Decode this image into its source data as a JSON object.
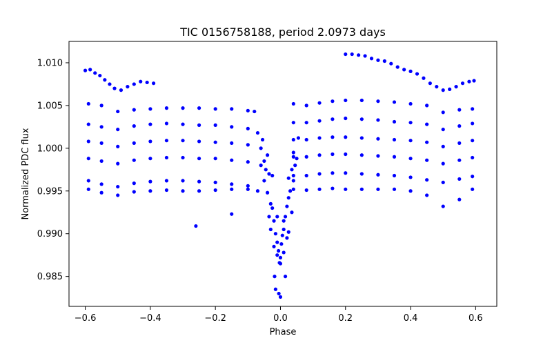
{
  "chart_data": {
    "type": "scatter",
    "title": "TIC 0156758188, period 2.0973 days",
    "xlabel": "Phase",
    "ylabel": "Normalized PDC flux",
    "xlim": [
      -0.65,
      0.665
    ],
    "ylim": [
      0.9815,
      1.0125
    ],
    "xticks": [
      -0.6,
      -0.4,
      -0.2,
      0.0,
      0.2,
      0.4,
      0.6
    ],
    "xtick_labels": [
      "−0.6",
      "−0.4",
      "−0.2",
      "0.0",
      "0.2",
      "0.4",
      "0.6"
    ],
    "yticks": [
      0.985,
      0.99,
      0.995,
      1.0,
      1.005,
      1.01
    ],
    "ytick_labels": [
      "0.985",
      "0.990",
      "0.995",
      "1.000",
      "1.005",
      "1.010"
    ],
    "grid": false,
    "marker_color": "#0000ff",
    "series": [
      {
        "points": [
          [
            -0.6,
            1.0091
          ],
          [
            -0.585,
            1.0092
          ],
          [
            -0.57,
            1.0088
          ],
          [
            -0.555,
            1.0085
          ],
          [
            -0.54,
            1.008
          ],
          [
            -0.525,
            1.0075
          ],
          [
            -0.51,
            1.007
          ],
          [
            -0.49,
            1.0068
          ],
          [
            -0.47,
            1.0072
          ],
          [
            -0.45,
            1.0075
          ],
          [
            -0.43,
            1.0078
          ],
          [
            -0.41,
            1.0077
          ],
          [
            -0.39,
            1.0076
          ],
          [
            0.2,
            1.011
          ],
          [
            0.22,
            1.011
          ],
          [
            0.24,
            1.0109
          ],
          [
            0.26,
            1.0108
          ],
          [
            0.28,
            1.0105
          ],
          [
            0.3,
            1.0103
          ],
          [
            0.32,
            1.0102
          ],
          [
            0.34,
            1.0099
          ],
          [
            0.36,
            1.0095
          ],
          [
            0.38,
            1.0092
          ],
          [
            0.4,
            1.009
          ],
          [
            0.42,
            1.0087
          ],
          [
            0.44,
            1.0082
          ],
          [
            0.46,
            1.0076
          ],
          [
            0.48,
            1.0072
          ],
          [
            0.5,
            1.0068
          ],
          [
            0.52,
            1.0069
          ],
          [
            0.54,
            1.0072
          ],
          [
            0.56,
            1.0076
          ],
          [
            0.58,
            1.0078
          ],
          [
            0.595,
            1.0079
          ],
          [
            -0.59,
            1.0052
          ],
          [
            -0.55,
            1.005
          ],
          [
            -0.5,
            1.0043
          ],
          [
            -0.45,
            1.0045
          ],
          [
            -0.4,
            1.0046
          ],
          [
            -0.35,
            1.0047
          ],
          [
            -0.3,
            1.0047
          ],
          [
            -0.25,
            1.0047
          ],
          [
            -0.2,
            1.0046
          ],
          [
            -0.15,
            1.0046
          ],
          [
            -0.1,
            1.0044
          ],
          [
            -0.08,
            1.0043
          ],
          [
            -0.59,
            1.0028
          ],
          [
            -0.55,
            1.0025
          ],
          [
            -0.5,
            1.0022
          ],
          [
            -0.45,
            1.0026
          ],
          [
            -0.4,
            1.0028
          ],
          [
            -0.35,
            1.0029
          ],
          [
            -0.3,
            1.0028
          ],
          [
            -0.25,
            1.0027
          ],
          [
            -0.2,
            1.0027
          ],
          [
            -0.15,
            1.0025
          ],
          [
            -0.1,
            1.0023
          ],
          [
            -0.07,
            1.0018
          ],
          [
            -0.59,
            1.0008
          ],
          [
            -0.55,
            1.0006
          ],
          [
            -0.5,
            1.0002
          ],
          [
            -0.45,
            1.0006
          ],
          [
            -0.4,
            1.0008
          ],
          [
            -0.35,
            1.0009
          ],
          [
            -0.3,
            1.0009
          ],
          [
            -0.25,
            1.0008
          ],
          [
            -0.2,
            1.0007
          ],
          [
            -0.15,
            1.0006
          ],
          [
            -0.1,
            1.0004
          ],
          [
            -0.06,
            1.0
          ],
          [
            -0.59,
            0.9988
          ],
          [
            -0.55,
            0.9985
          ],
          [
            -0.5,
            0.9982
          ],
          [
            -0.45,
            0.9986
          ],
          [
            -0.4,
            0.9988
          ],
          [
            -0.35,
            0.9989
          ],
          [
            -0.3,
            0.9989
          ],
          [
            -0.25,
            0.9988
          ],
          [
            -0.2,
            0.9988
          ],
          [
            -0.15,
            0.9986
          ],
          [
            -0.1,
            0.9984
          ],
          [
            -0.06,
            0.998
          ],
          [
            -0.59,
            0.9962
          ],
          [
            -0.55,
            0.9958
          ],
          [
            -0.5,
            0.9955
          ],
          [
            -0.45,
            0.9959
          ],
          [
            -0.4,
            0.9961
          ],
          [
            -0.35,
            0.9962
          ],
          [
            -0.3,
            0.9962
          ],
          [
            -0.25,
            0.9961
          ],
          [
            -0.2,
            0.996
          ],
          [
            -0.15,
            0.9958
          ],
          [
            -0.1,
            0.9956
          ],
          [
            -0.07,
            0.995
          ],
          [
            -0.59,
            0.9952
          ],
          [
            -0.55,
            0.9948
          ],
          [
            -0.5,
            0.9945
          ],
          [
            -0.45,
            0.9949
          ],
          [
            -0.4,
            0.995
          ],
          [
            -0.35,
            0.9951
          ],
          [
            -0.3,
            0.995
          ],
          [
            -0.25,
            0.995
          ],
          [
            -0.2,
            0.9951
          ],
          [
            -0.15,
            0.9952
          ],
          [
            -0.1,
            0.9952
          ],
          [
            -0.26,
            0.9909
          ],
          [
            -0.15,
            0.9923
          ],
          [
            0.04,
            1.0052
          ],
          [
            0.08,
            1.005
          ],
          [
            0.12,
            1.0053
          ],
          [
            0.16,
            1.0055
          ],
          [
            0.2,
            1.0056
          ],
          [
            0.25,
            1.0056
          ],
          [
            0.3,
            1.0055
          ],
          [
            0.35,
            1.0054
          ],
          [
            0.4,
            1.0052
          ],
          [
            0.45,
            1.005
          ],
          [
            0.5,
            1.0042
          ],
          [
            0.55,
            1.0045
          ],
          [
            0.59,
            1.0046
          ],
          [
            0.04,
            1.003
          ],
          [
            0.08,
            1.003
          ],
          [
            0.12,
            1.0032
          ],
          [
            0.16,
            1.0034
          ],
          [
            0.2,
            1.0035
          ],
          [
            0.25,
            1.0034
          ],
          [
            0.3,
            1.0033
          ],
          [
            0.35,
            1.0031
          ],
          [
            0.4,
            1.003
          ],
          [
            0.45,
            1.0028
          ],
          [
            0.5,
            1.0022
          ],
          [
            0.55,
            1.0026
          ],
          [
            0.59,
            1.0029
          ],
          [
            0.04,
            1.001
          ],
          [
            0.08,
            1.001
          ],
          [
            0.12,
            1.0012
          ],
          [
            0.16,
            1.0013
          ],
          [
            0.2,
            1.0013
          ],
          [
            0.25,
            1.0012
          ],
          [
            0.3,
            1.0011
          ],
          [
            0.35,
            1.001
          ],
          [
            0.4,
            1.0009
          ],
          [
            0.45,
            1.0007
          ],
          [
            0.5,
            1.0002
          ],
          [
            0.55,
            1.0006
          ],
          [
            0.59,
            1.0009
          ],
          [
            0.04,
            0.999
          ],
          [
            0.08,
            0.999
          ],
          [
            0.12,
            0.9992
          ],
          [
            0.16,
            0.9993
          ],
          [
            0.2,
            0.9993
          ],
          [
            0.25,
            0.9992
          ],
          [
            0.3,
            0.9991
          ],
          [
            0.35,
            0.999
          ],
          [
            0.4,
            0.9988
          ],
          [
            0.45,
            0.9986
          ],
          [
            0.5,
            0.9982
          ],
          [
            0.55,
            0.9986
          ],
          [
            0.59,
            0.9989
          ],
          [
            0.04,
            0.9968
          ],
          [
            0.08,
            0.9968
          ],
          [
            0.12,
            0.997
          ],
          [
            0.16,
            0.9971
          ],
          [
            0.2,
            0.9971
          ],
          [
            0.25,
            0.997
          ],
          [
            0.3,
            0.9969
          ],
          [
            0.35,
            0.9968
          ],
          [
            0.4,
            0.9966
          ],
          [
            0.45,
            0.9963
          ],
          [
            0.5,
            0.996
          ],
          [
            0.55,
            0.9964
          ],
          [
            0.59,
            0.9967
          ],
          [
            0.04,
            0.9952
          ],
          [
            0.08,
            0.9951
          ],
          [
            0.12,
            0.9952
          ],
          [
            0.16,
            0.9953
          ],
          [
            0.2,
            0.9952
          ],
          [
            0.25,
            0.9952
          ],
          [
            0.3,
            0.9952
          ],
          [
            0.35,
            0.9952
          ],
          [
            0.4,
            0.995
          ],
          [
            0.45,
            0.9945
          ],
          [
            0.5,
            0.9932
          ],
          [
            0.55,
            0.994
          ],
          [
            0.59,
            0.9952
          ],
          [
            -0.05,
            0.9962
          ],
          [
            -0.04,
            0.9948
          ],
          [
            -0.03,
            0.9935
          ],
          [
            -0.025,
            0.993
          ],
          [
            -0.02,
            0.9915
          ],
          [
            -0.015,
            0.99
          ],
          [
            -0.01,
            0.989
          ],
          [
            -0.006,
            0.988
          ],
          [
            -0.003,
            0.9866
          ],
          [
            0.0,
            0.9872
          ],
          [
            0.003,
            0.9888
          ],
          [
            0.006,
            0.9898
          ],
          [
            0.01,
            0.9905
          ],
          [
            0.015,
            0.992
          ],
          [
            0.02,
            0.9932
          ],
          [
            0.025,
            0.9942
          ],
          [
            0.03,
            0.995
          ],
          [
            0.04,
            0.9962
          ],
          [
            -0.02,
            0.9885
          ],
          [
            -0.01,
            0.9875
          ],
          [
            0.0,
            0.9865
          ],
          [
            0.01,
            0.9878
          ],
          [
            0.02,
            0.9895
          ],
          [
            -0.015,
            0.9835
          ],
          [
            -0.005,
            0.983
          ],
          [
            0.0,
            0.9826
          ],
          [
            0.015,
            0.985
          ],
          [
            -0.018,
            0.985
          ],
          [
            -0.03,
            0.9905
          ],
          [
            0.025,
            0.9902
          ],
          [
            -0.035,
            0.992
          ],
          [
            0.035,
            0.9925
          ],
          [
            -0.01,
            0.992
          ],
          [
            0.01,
            0.9915
          ],
          [
            -0.045,
            0.9975
          ],
          [
            -0.035,
            0.997
          ],
          [
            0.035,
            0.9975
          ],
          [
            0.045,
            0.998
          ],
          [
            -0.025,
            0.9968
          ],
          [
            0.025,
            0.9965
          ],
          [
            -0.05,
            0.9985
          ],
          [
            0.05,
            0.9988
          ],
          [
            -0.04,
            0.9992
          ],
          [
            0.04,
            0.9995
          ],
          [
            -0.055,
            1.001
          ],
          [
            0.055,
            1.0012
          ]
        ]
      }
    ]
  }
}
